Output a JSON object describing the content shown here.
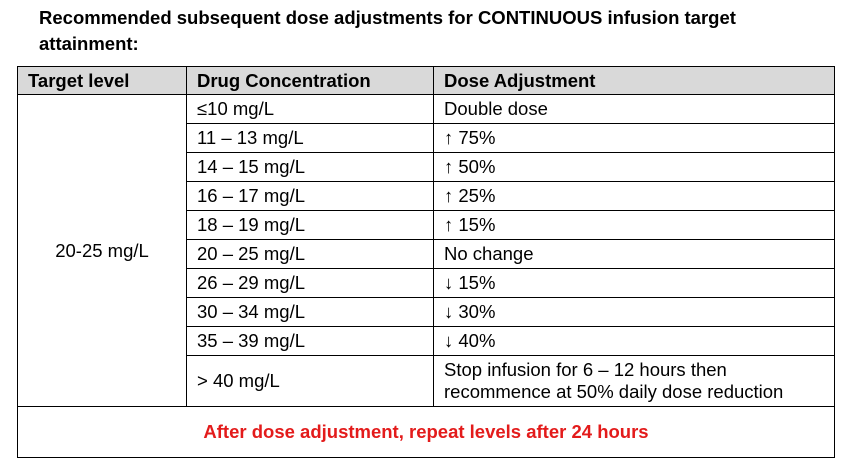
{
  "heading": "Recommended subsequent dose adjustments for CONTINUOUS infusion target attainment:",
  "table": {
    "headers": [
      "Target level",
      "Drug Concentration",
      "Dose Adjustment"
    ],
    "target_level": "20-25 mg/L",
    "rows": [
      {
        "concentration": "≤10 mg/L",
        "adjustment": "Double dose"
      },
      {
        "concentration": "11 – 13 mg/L",
        "adjustment": "↑ 75%"
      },
      {
        "concentration": "14 – 15 mg/L",
        "adjustment": "↑ 50%"
      },
      {
        "concentration": "16 – 17 mg/L",
        "adjustment": "↑ 25%"
      },
      {
        "concentration": "18 – 19 mg/L",
        "adjustment": "↑ 15%"
      },
      {
        "concentration": "20 – 25 mg/L",
        "adjustment": "No change"
      },
      {
        "concentration": "26 – 29 mg/L",
        "adjustment": "↓ 15%"
      },
      {
        "concentration": "30 – 34 mg/L",
        "adjustment": "↓ 30%"
      },
      {
        "concentration": "35 – 39 mg/L",
        "adjustment": "↓ 40%"
      },
      {
        "concentration": "> 40 mg/L",
        "adjustment": "Stop infusion for 6 – 12 hours then recommence at 50% daily dose reduction"
      }
    ],
    "footer": "After dose adjustment, repeat levels after 24 hours"
  },
  "colors": {
    "header_background": "#d9d9d9",
    "footer_text": "#e31b1b"
  }
}
